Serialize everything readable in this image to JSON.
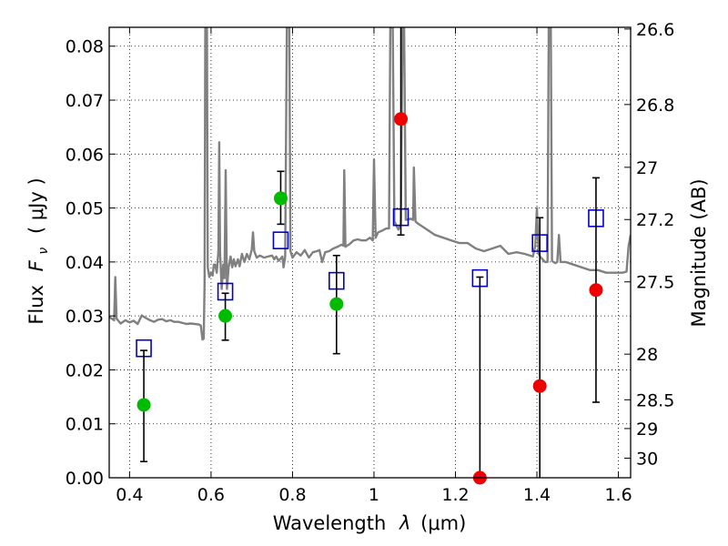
{
  "chart_data": {
    "type": "scatter",
    "xlabel_text": "Wavelength",
    "xlabel_symbol": "λ",
    "xlabel_unit": "(μm)",
    "ylabel_text": "Flux",
    "ylabel_symbol": "F",
    "ylabel_subscript": "ν",
    "ylabel_unit": "( μJy )",
    "y2label": "Magnitude (AB)",
    "xlim": [
      0.35,
      1.63
    ],
    "ylim": [
      0.0,
      0.0835
    ],
    "grid": true,
    "x_ticks": [
      0.4,
      0.6,
      0.8,
      1.0,
      1.2,
      1.4,
      1.6
    ],
    "x_tick_labels": [
      "0.4",
      "0.6",
      "0.8",
      "1",
      "1.2",
      "1.4",
      "1.6"
    ],
    "y_ticks": [
      0.0,
      0.01,
      0.02,
      0.03,
      0.04,
      0.05,
      0.06,
      0.07,
      0.08
    ],
    "y_tick_labels": [
      "0.00",
      "0.01",
      "0.02",
      "0.03",
      "0.04",
      "0.05",
      "0.06",
      "0.07",
      "0.08"
    ],
    "mag_ticks": [
      26.6,
      26.8,
      27.0,
      27.2,
      27.5,
      28.0,
      28.5,
      29.0,
      30.0
    ],
    "mag_tick_labels": [
      "26.6",
      "26.8",
      "27",
      "27.2",
      "27.5",
      "28",
      "28.5",
      "29",
      "30"
    ],
    "colors": {
      "spectrum": "#808080",
      "detection": "#00bb00",
      "nondetection": "#ee0000",
      "model": "#0000cc",
      "errorbar": "#000000",
      "grid": "#000000"
    },
    "series": [
      {
        "kind": "line",
        "points": [
          [
            0.35,
            0.0298
          ],
          [
            0.362,
            0.0292
          ],
          [
            0.365,
            0.0372
          ],
          [
            0.368,
            0.0295
          ],
          [
            0.378,
            0.0286
          ],
          [
            0.39,
            0.0292
          ],
          [
            0.4,
            0.0288
          ],
          [
            0.41,
            0.0291
          ],
          [
            0.42,
            0.0285
          ],
          [
            0.43,
            0.0301
          ],
          [
            0.44,
            0.0296
          ],
          [
            0.45,
            0.0292
          ],
          [
            0.46,
            0.0289
          ],
          [
            0.47,
            0.0293
          ],
          [
            0.48,
            0.0294
          ],
          [
            0.49,
            0.029
          ],
          [
            0.5,
            0.0292
          ],
          [
            0.51,
            0.0289
          ],
          [
            0.52,
            0.0289
          ],
          [
            0.53,
            0.0287
          ],
          [
            0.54,
            0.0285
          ],
          [
            0.55,
            0.0286
          ],
          [
            0.56,
            0.0285
          ],
          [
            0.57,
            0.0284
          ],
          [
            0.575,
            0.0282
          ],
          [
            0.579,
            0.0256
          ],
          [
            0.582,
            0.0258
          ],
          [
            0.584,
            0.036
          ],
          [
            0.586,
            0.0835
          ],
          [
            0.59,
            0.0835
          ],
          [
            0.592,
            0.039
          ],
          [
            0.596,
            0.0372
          ],
          [
            0.6,
            0.038
          ],
          [
            0.604,
            0.0375
          ],
          [
            0.607,
            0.0395
          ],
          [
            0.61,
            0.0395
          ],
          [
            0.614,
            0.038
          ],
          [
            0.618,
            0.042
          ],
          [
            0.62,
            0.0622
          ],
          [
            0.622,
            0.042
          ],
          [
            0.626,
            0.035
          ],
          [
            0.63,
            0.0395
          ],
          [
            0.633,
            0.037
          ],
          [
            0.636,
            0.057
          ],
          [
            0.639,
            0.035
          ],
          [
            0.643,
            0.039
          ],
          [
            0.648,
            0.041
          ],
          [
            0.652,
            0.039
          ],
          [
            0.656,
            0.0405
          ],
          [
            0.66,
            0.0392
          ],
          [
            0.666,
            0.0405
          ],
          [
            0.67,
            0.0392
          ],
          [
            0.676,
            0.0415
          ],
          [
            0.682,
            0.04
          ],
          [
            0.688,
            0.0415
          ],
          [
            0.694,
            0.0405
          ],
          [
            0.7,
            0.0423
          ],
          [
            0.703,
            0.0455
          ],
          [
            0.706,
            0.042
          ],
          [
            0.712,
            0.0408
          ],
          [
            0.72,
            0.0412
          ],
          [
            0.73,
            0.0408
          ],
          [
            0.74,
            0.041
          ],
          [
            0.75,
            0.0412
          ],
          [
            0.755,
            0.0405
          ],
          [
            0.76,
            0.041
          ],
          [
            0.766,
            0.0402
          ],
          [
            0.775,
            0.041
          ],
          [
            0.778,
            0.039
          ],
          [
            0.782,
            0.041
          ],
          [
            0.786,
            0.0835
          ],
          [
            0.792,
            0.0835
          ],
          [
            0.795,
            0.042
          ],
          [
            0.8,
            0.0408
          ],
          [
            0.81,
            0.0418
          ],
          [
            0.82,
            0.0412
          ],
          [
            0.83,
            0.0422
          ],
          [
            0.84,
            0.0408
          ],
          [
            0.85,
            0.0418
          ],
          [
            0.86,
            0.042
          ],
          [
            0.866,
            0.0422
          ],
          [
            0.873,
            0.04
          ],
          [
            0.88,
            0.0418
          ],
          [
            0.89,
            0.042
          ],
          [
            0.9,
            0.0425
          ],
          [
            0.91,
            0.0428
          ],
          [
            0.92,
            0.0432
          ],
          [
            0.925,
            0.043
          ],
          [
            0.927,
            0.057
          ],
          [
            0.93,
            0.0428
          ],
          [
            0.94,
            0.0433
          ],
          [
            0.95,
            0.044
          ],
          [
            0.96,
            0.0442
          ],
          [
            0.97,
            0.044
          ],
          [
            0.98,
            0.044
          ],
          [
            0.99,
            0.0445
          ],
          [
            0.997,
            0.044
          ],
          [
            1.0,
            0.059
          ],
          [
            1.004,
            0.0445
          ],
          [
            1.01,
            0.0455
          ],
          [
            1.02,
            0.0458
          ],
          [
            1.03,
            0.0462
          ],
          [
            1.037,
            0.0462
          ],
          [
            1.04,
            0.0835
          ],
          [
            1.046,
            0.0835
          ],
          [
            1.05,
            0.0475
          ],
          [
            1.06,
            0.046
          ],
          [
            1.066,
            0.047
          ],
          [
            1.07,
            0.0835
          ],
          [
            1.074,
            0.0835
          ],
          [
            1.078,
            0.0478
          ],
          [
            1.09,
            0.048
          ],
          [
            1.096,
            0.0478
          ],
          [
            1.098,
            0.0575
          ],
          [
            1.102,
            0.0475
          ],
          [
            1.11,
            0.047
          ],
          [
            1.12,
            0.0465
          ],
          [
            1.13,
            0.046
          ],
          [
            1.15,
            0.045
          ],
          [
            1.17,
            0.0445
          ],
          [
            1.19,
            0.044
          ],
          [
            1.21,
            0.0435
          ],
          [
            1.23,
            0.0435
          ],
          [
            1.25,
            0.0425
          ],
          [
            1.27,
            0.042
          ],
          [
            1.29,
            0.0425
          ],
          [
            1.31,
            0.043
          ],
          [
            1.33,
            0.0415
          ],
          [
            1.35,
            0.0418
          ],
          [
            1.37,
            0.0415
          ],
          [
            1.39,
            0.041
          ],
          [
            1.396,
            0.043
          ],
          [
            1.4,
            0.05
          ],
          [
            1.404,
            0.0415
          ],
          [
            1.41,
            0.0408
          ],
          [
            1.42,
            0.04
          ],
          [
            1.426,
            0.04
          ],
          [
            1.429,
            0.0835
          ],
          [
            1.434,
            0.0835
          ],
          [
            1.437,
            0.0402
          ],
          [
            1.445,
            0.0398
          ],
          [
            1.45,
            0.04
          ],
          [
            1.454,
            0.045
          ],
          [
            1.458,
            0.04
          ],
          [
            1.47,
            0.04
          ],
          [
            1.49,
            0.0395
          ],
          [
            1.51,
            0.039
          ],
          [
            1.53,
            0.0385
          ],
          [
            1.55,
            0.0385
          ],
          [
            1.57,
            0.038
          ],
          [
            1.59,
            0.038
          ],
          [
            1.61,
            0.038
          ],
          [
            1.62,
            0.0382
          ],
          [
            1.625,
            0.043
          ],
          [
            1.63,
            0.045
          ]
        ]
      },
      {
        "kind": "model",
        "x": [
          0.435,
          0.635,
          0.771,
          0.908,
          1.066,
          1.26,
          1.407,
          1.545
        ],
        "y": [
          0.024,
          0.0345,
          0.044,
          0.0365,
          0.0483,
          0.037,
          0.0435,
          0.0481
        ]
      },
      {
        "kind": "detection",
        "x": [
          0.435,
          0.635,
          0.771,
          0.908
        ],
        "y": [
          0.0135,
          0.03,
          0.0518,
          0.0322
        ],
        "yerr_low": [
          0.003,
          0.0255,
          0.047,
          0.023
        ],
        "yerr_high": [
          0.0236,
          0.0342,
          0.0568,
          0.0412
        ]
      },
      {
        "kind": "nondetection",
        "x": [
          1.066,
          1.26,
          1.407,
          1.545
        ],
        "y": [
          0.0665,
          0.0,
          0.017,
          0.0348
        ],
        "yerr_low": [
          0.045,
          0.0,
          0.0,
          0.014
        ],
        "yerr_high": [
          0.0835,
          0.0372,
          0.0482,
          0.0556
        ]
      }
    ]
  }
}
